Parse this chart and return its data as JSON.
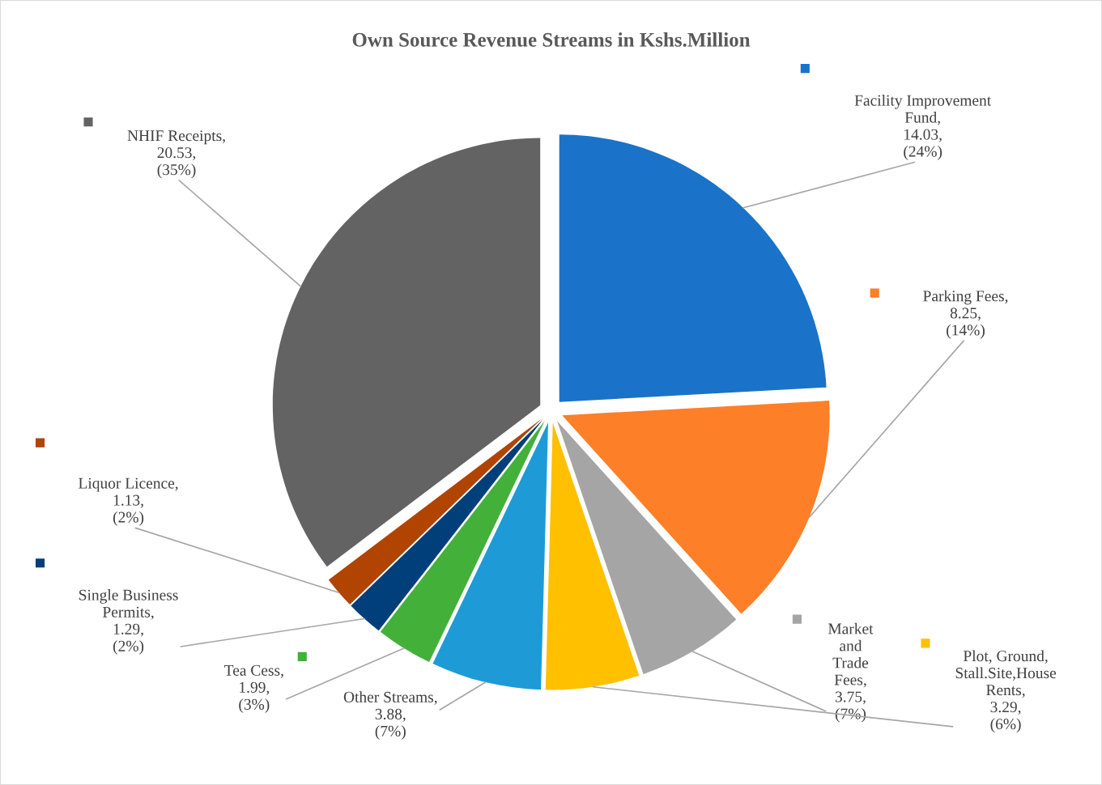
{
  "chart_data": {
    "type": "pie",
    "title": "Own Source Revenue Streams in Kshs.Million",
    "categories": [
      "Facility Improvement Fund",
      "Parking Fees",
      "Market and Trade Fees",
      "Plot, Ground, Stall.Site,House Rents",
      "Other Streams",
      "Tea Cess",
      "Single Business Permits",
      "Liquor Licence",
      "NHIF Receipts"
    ],
    "values": [
      14.03,
      8.25,
      3.75,
      3.29,
      3.88,
      1.99,
      1.29,
      1.13,
      20.53
    ],
    "value_labels": [
      ",\n14.03,\n(24%)",
      ",\n8.25,\n(14%)",
      ",\n3.75,\n(7%)",
      ",\n3.29,\n(6%)",
      ",\n3.88,\n(7%)",
      ",\n1.99,\n(3%)",
      ",\n1.29,\n(2%)",
      ",\n1.13,\n(2%)",
      ",\n20.53,\n(35%)"
    ],
    "colors": [
      "#1a73c8",
      "#fd7f28",
      "#a5a5a5",
      "#ffc000",
      "#1e9bd7",
      "#43b03a",
      "#003f7a",
      "#b14400",
      "#636363"
    ]
  }
}
